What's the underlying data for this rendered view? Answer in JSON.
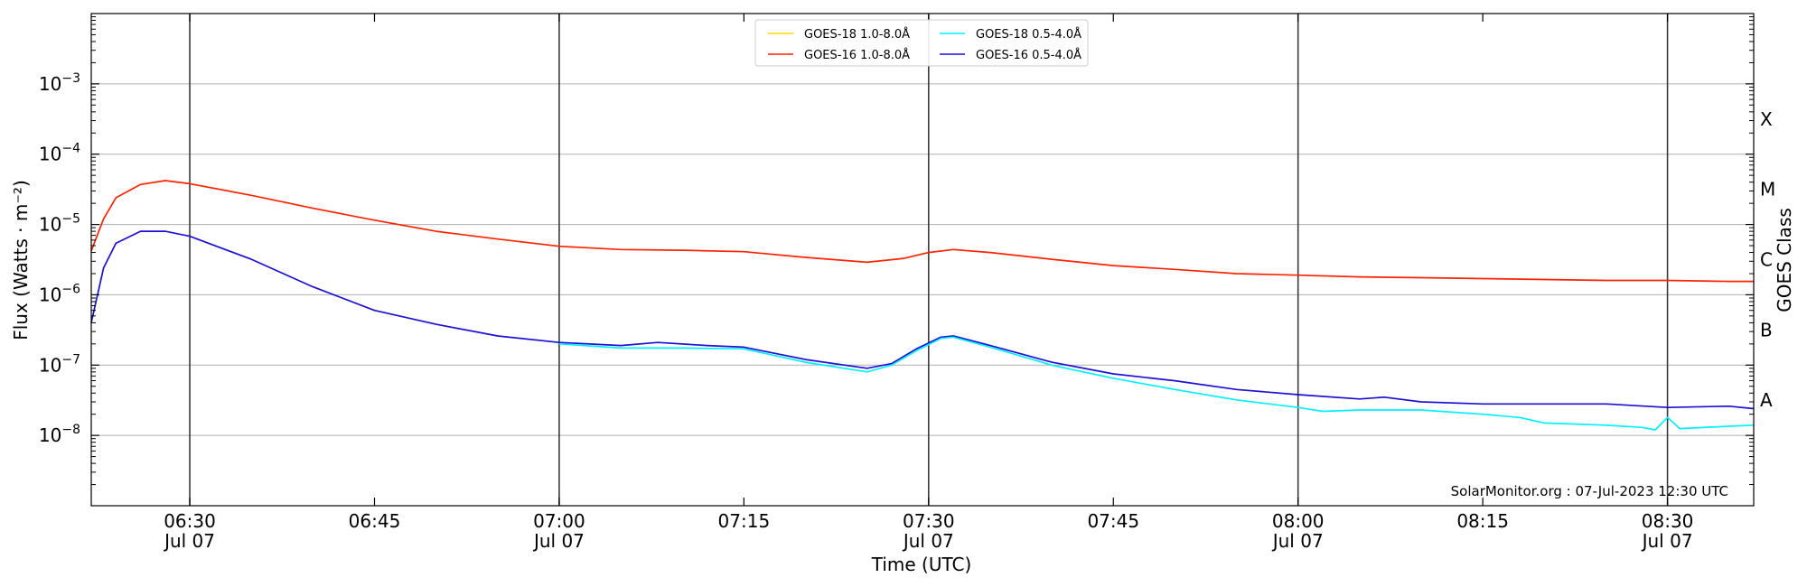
{
  "chart_data": {
    "type": "line",
    "ylabel": "Flux (Watts · m⁻²)",
    "xlabel": "Time (UTC)",
    "right_axis_label": "GOES Class",
    "yscale": "log",
    "ylim": [
      1e-09,
      0.01
    ],
    "x_range": [
      "2023-07-07 06:22",
      "2023-07-07 08:37"
    ],
    "y_ticks": [
      {
        "value": 0.001,
        "mant": "10",
        "exp": "−3"
      },
      {
        "value": 0.0001,
        "mant": "10",
        "exp": "−4"
      },
      {
        "value": 1e-05,
        "mant": "10",
        "exp": "−5"
      },
      {
        "value": 1e-06,
        "mant": "10",
        "exp": "−6"
      },
      {
        "value": 1e-07,
        "mant": "10",
        "exp": "−7"
      },
      {
        "value": 1e-08,
        "mant": "10",
        "exp": "−8"
      }
    ],
    "x_ticks": [
      {
        "time": "06:30",
        "label": "06:30",
        "date": "Jul 07"
      },
      {
        "time": "06:45",
        "label": "06:45",
        "date": ""
      },
      {
        "time": "07:00",
        "label": "07:00",
        "date": "Jul 07"
      },
      {
        "time": "07:15",
        "label": "07:15",
        "date": ""
      },
      {
        "time": "07:30",
        "label": "07:30",
        "date": "Jul 07"
      },
      {
        "time": "07:45",
        "label": "07:45",
        "date": ""
      },
      {
        "time": "08:00",
        "label": "08:00",
        "date": "Jul 07"
      },
      {
        "time": "08:15",
        "label": "08:15",
        "date": ""
      },
      {
        "time": "08:30",
        "label": "08:30",
        "date": "Jul 07"
      }
    ],
    "vertical_lines": [
      "06:30",
      "07:00",
      "07:30",
      "08:00",
      "08:30"
    ],
    "goes_classes": [
      {
        "label": "X",
        "value": 0.0001
      },
      {
        "label": "M",
        "value": 1e-05
      },
      {
        "label": "C",
        "value": 1e-06
      },
      {
        "label": "B",
        "value": 1e-07
      },
      {
        "label": "A",
        "value": 1e-08
      }
    ],
    "grid": "horizontal",
    "legend_position": "top-center",
    "legend": [
      {
        "name": "GOES-18 1.0-8.0Å",
        "color": "#ffd700"
      },
      {
        "name": "GOES-18 0.5-4.0Å",
        "color": "#00f0ff"
      },
      {
        "name": "GOES-16 1.0-8.0Å",
        "color": "#ff2200"
      },
      {
        "name": "GOES-16 0.5-4.0Å",
        "color": "#1a10d6"
      }
    ],
    "series": [
      {
        "name": "GOES-16 1.0-8.0Å",
        "color": "#ff2200",
        "points": [
          [
            "06:22",
            4.2e-06
          ],
          [
            "06:23",
            1.2e-05
          ],
          [
            "06:24",
            2.4e-05
          ],
          [
            "06:26",
            3.7e-05
          ],
          [
            "06:28",
            4.2e-05
          ],
          [
            "06:30",
            3.8e-05
          ],
          [
            "06:35",
            2.6e-05
          ],
          [
            "06:40",
            1.7e-05
          ],
          [
            "06:45",
            1.15e-05
          ],
          [
            "06:50",
            8e-06
          ],
          [
            "06:55",
            6.2e-06
          ],
          [
            "07:00",
            4.9e-06
          ],
          [
            "07:05",
            4.4e-06
          ],
          [
            "07:10",
            4.3e-06
          ],
          [
            "07:15",
            4.1e-06
          ],
          [
            "07:20",
            3.4e-06
          ],
          [
            "07:25",
            2.9e-06
          ],
          [
            "07:28",
            3.3e-06
          ],
          [
            "07:30",
            4e-06
          ],
          [
            "07:32",
            4.4e-06
          ],
          [
            "07:35",
            4e-06
          ],
          [
            "07:40",
            3.2e-06
          ],
          [
            "07:45",
            2.6e-06
          ],
          [
            "07:50",
            2.3e-06
          ],
          [
            "07:55",
            2e-06
          ],
          [
            "08:00",
            1.9e-06
          ],
          [
            "08:05",
            1.8e-06
          ],
          [
            "08:10",
            1.75e-06
          ],
          [
            "08:15",
            1.7e-06
          ],
          [
            "08:20",
            1.65e-06
          ],
          [
            "08:25",
            1.6e-06
          ],
          [
            "08:30",
            1.6e-06
          ],
          [
            "08:35",
            1.55e-06
          ],
          [
            "08:37",
            1.55e-06
          ]
        ]
      },
      {
        "name": "GOES-16 0.5-4.0Å",
        "color": "#1a10d6",
        "points": [
          [
            "06:22",
            4e-07
          ],
          [
            "06:23",
            2.4e-06
          ],
          [
            "06:24",
            5.4e-06
          ],
          [
            "06:26",
            8e-06
          ],
          [
            "06:28",
            8e-06
          ],
          [
            "06:30",
            6.8e-06
          ],
          [
            "06:35",
            3.2e-06
          ],
          [
            "06:40",
            1.3e-06
          ],
          [
            "06:45",
            6e-07
          ],
          [
            "06:50",
            3.8e-07
          ],
          [
            "06:55",
            2.6e-07
          ],
          [
            "07:00",
            2.1e-07
          ],
          [
            "07:05",
            1.9e-07
          ],
          [
            "07:08",
            2.1e-07
          ],
          [
            "07:12",
            1.9e-07
          ],
          [
            "07:15",
            1.8e-07
          ],
          [
            "07:20",
            1.2e-07
          ],
          [
            "07:25",
            9e-08
          ],
          [
            "07:27",
            1.05e-07
          ],
          [
            "07:29",
            1.7e-07
          ],
          [
            "07:31",
            2.5e-07
          ],
          [
            "07:32",
            2.6e-07
          ],
          [
            "07:35",
            1.9e-07
          ],
          [
            "07:40",
            1.1e-07
          ],
          [
            "07:45",
            7.5e-08
          ],
          [
            "07:50",
            6e-08
          ],
          [
            "07:55",
            4.5e-08
          ],
          [
            "08:00",
            3.8e-08
          ],
          [
            "08:05",
            3.3e-08
          ],
          [
            "08:07",
            3.5e-08
          ],
          [
            "08:10",
            3e-08
          ],
          [
            "08:15",
            2.8e-08
          ],
          [
            "08:20",
            2.8e-08
          ],
          [
            "08:25",
            2.8e-08
          ],
          [
            "08:30",
            2.5e-08
          ],
          [
            "08:35",
            2.6e-08
          ],
          [
            "08:37",
            2.4e-08
          ]
        ]
      },
      {
        "name": "GOES-18 0.5-4.0Å",
        "color": "#00f0ff",
        "points": [
          [
            "07:00",
            2e-07
          ],
          [
            "07:05",
            1.75e-07
          ],
          [
            "07:10",
            1.75e-07
          ],
          [
            "07:15",
            1.7e-07
          ],
          [
            "07:20",
            1.1e-07
          ],
          [
            "07:25",
            8e-08
          ],
          [
            "07:27",
            1e-07
          ],
          [
            "07:29",
            1.6e-07
          ],
          [
            "07:31",
            2.4e-07
          ],
          [
            "07:32",
            2.5e-07
          ],
          [
            "07:35",
            1.8e-07
          ],
          [
            "07:40",
            1e-07
          ],
          [
            "07:45",
            6.5e-08
          ],
          [
            "07:50",
            4.5e-08
          ],
          [
            "07:55",
            3.2e-08
          ],
          [
            "08:00",
            2.5e-08
          ],
          [
            "08:02",
            2.2e-08
          ],
          [
            "08:05",
            2.3e-08
          ],
          [
            "08:10",
            2.3e-08
          ],
          [
            "08:15",
            2e-08
          ],
          [
            "08:18",
            1.8e-08
          ],
          [
            "08:20",
            1.5e-08
          ],
          [
            "08:25",
            1.4e-08
          ],
          [
            "08:28",
            1.3e-08
          ],
          [
            "08:29",
            1.2e-08
          ],
          [
            "08:30",
            1.8e-08
          ],
          [
            "08:31",
            1.25e-08
          ],
          [
            "08:35",
            1.35e-08
          ],
          [
            "08:37",
            1.4e-08
          ]
        ]
      },
      {
        "name": "GOES-18 1.0-8.0Å",
        "color": "#ffd700",
        "points": []
      }
    ]
  },
  "watermark": "SolarMonitor.org : 07-Jul-2023 12:30 UTC"
}
